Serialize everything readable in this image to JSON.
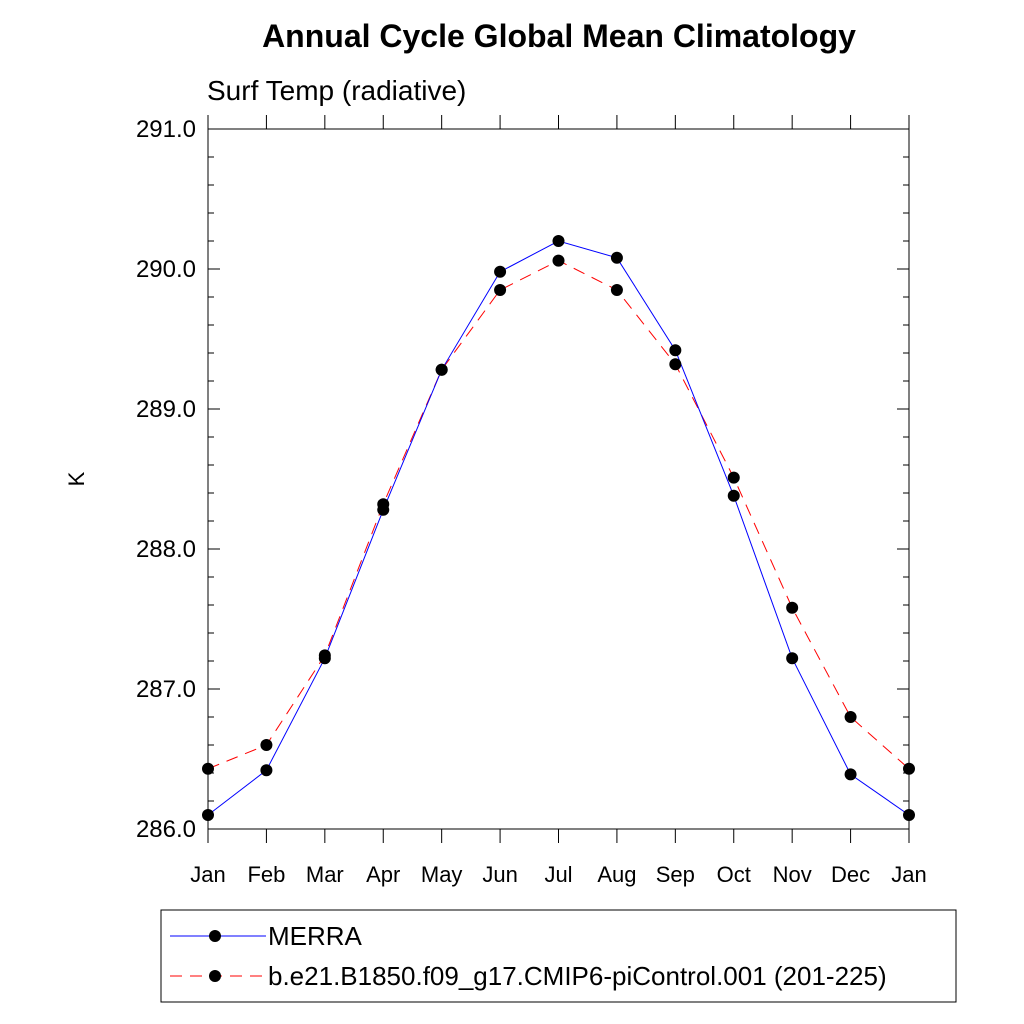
{
  "chart_data": {
    "type": "line",
    "title": "Annual Cycle Global Mean Climatology",
    "subtitle": "Surf Temp (radiative)",
    "xlabel": "",
    "ylabel": "K",
    "categories": [
      "Jan",
      "Feb",
      "Mar",
      "Apr",
      "May",
      "Jun",
      "Jul",
      "Aug",
      "Sep",
      "Oct",
      "Nov",
      "Dec",
      "Jan"
    ],
    "ylim": [
      286.0,
      291.0
    ],
    "yticks": [
      "286.0",
      "287.0",
      "288.0",
      "289.0",
      "290.0",
      "291.0"
    ],
    "grid": false,
    "legend_position": "bottom",
    "series": [
      {
        "name": "MERRA",
        "color": "#0000ff",
        "dash": "solid",
        "values": [
          286.1,
          286.42,
          287.22,
          288.28,
          289.28,
          289.98,
          290.2,
          290.08,
          289.42,
          288.38,
          287.22,
          286.39,
          286.1
        ]
      },
      {
        "name": "b.e21.B1850.f09_g17.CMIP6-piControl.001 (201-225)",
        "color": "#ff0000",
        "dash": "dashed",
        "values": [
          286.43,
          286.6,
          287.24,
          288.32,
          289.28,
          289.85,
          290.06,
          289.85,
          289.32,
          288.51,
          287.58,
          286.8,
          286.43
        ]
      }
    ]
  }
}
